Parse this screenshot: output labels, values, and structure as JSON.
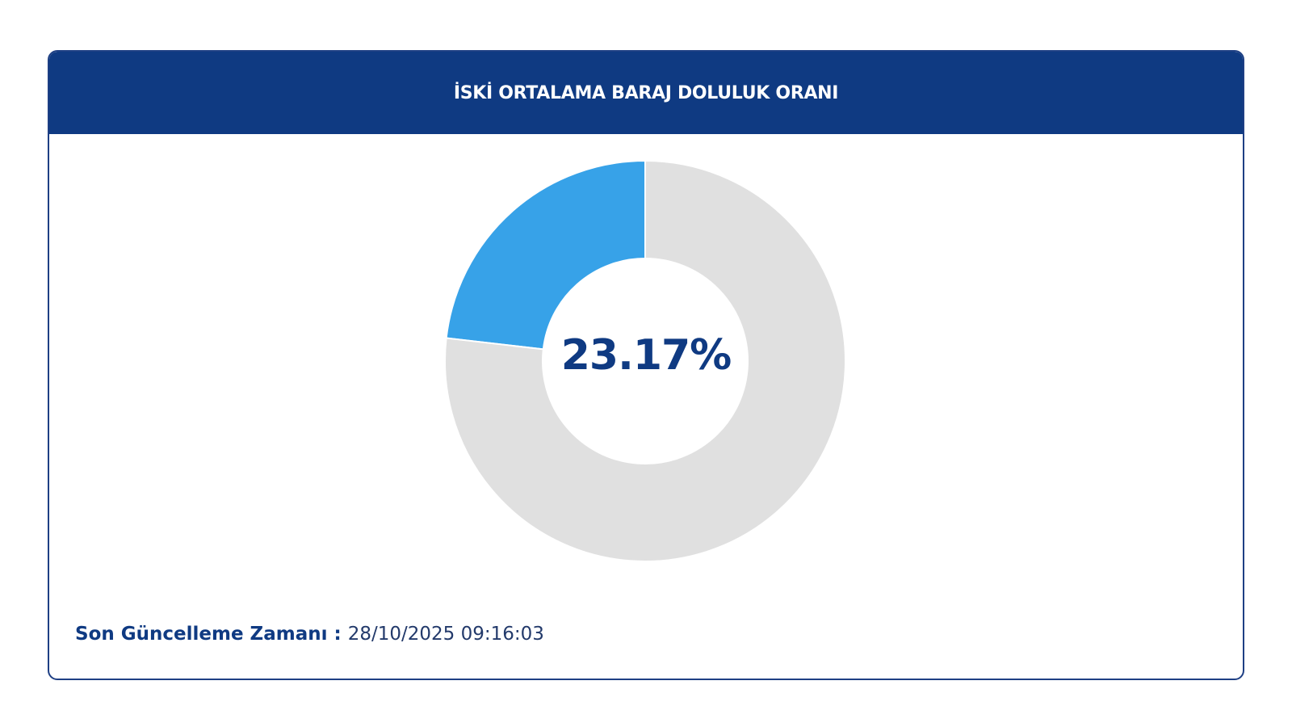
{
  "header": {
    "title": "İSKİ ORTALAMA BARAJ DOLULUK ORANI"
  },
  "chart_data": {
    "type": "pie",
    "variant": "donut",
    "values": [
      23.17,
      76.83
    ],
    "center_label": "23.17%",
    "colors": [
      "#37a2e8",
      "#e0e0e0"
    ],
    "direction": "counterclockwise-from-top"
  },
  "footer": {
    "label": "Son Güncelleme Zamanı",
    "separator": " : ",
    "value": "28/10/2025 09:16:03"
  }
}
